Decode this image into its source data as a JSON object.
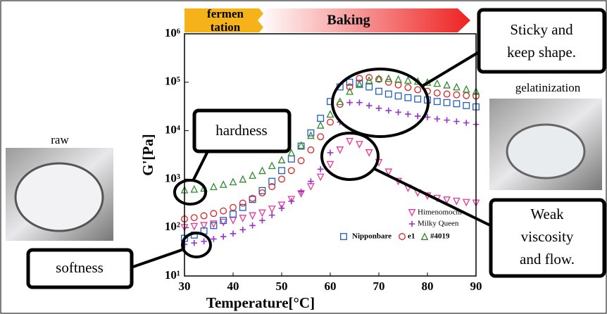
{
  "chart_data": {
    "type": "scatter",
    "yscale": "log",
    "xlabel": "Temperature[°C]",
    "ylabel": "G'[Pa]",
    "xlim": [
      30,
      90
    ],
    "xticks": [
      30,
      40,
      50,
      60,
      70,
      80,
      90
    ],
    "ylim": [
      10,
      1000000
    ],
    "yticks": [
      {
        "value": 10,
        "label": "10¹"
      },
      {
        "value": 100,
        "label": "10²"
      },
      {
        "value": 1000,
        "label": "10³"
      },
      {
        "value": 10000,
        "label": "10⁴"
      },
      {
        "value": 100000,
        "label": "10⁵"
      },
      {
        "value": 1000000,
        "label": "10⁶"
      }
    ],
    "x": [
      30,
      32,
      34,
      36,
      38,
      40,
      42,
      44,
      46,
      48,
      50,
      52,
      54,
      56,
      58,
      60,
      62,
      64,
      66,
      68,
      70,
      72,
      74,
      76,
      78,
      80,
      82,
      84,
      86,
      88,
      90
    ],
    "series": [
      {
        "name": "Himenomochi",
        "color": "#e8389a",
        "marker": "triangle-down",
        "values": [
          100,
          105,
          110,
          118,
          128,
          140,
          155,
          175,
          200,
          240,
          290,
          380,
          500,
          700,
          1100,
          2000,
          4000,
          6000,
          5200,
          3500,
          2200,
          1400,
          900,
          650,
          520,
          450,
          400,
          370,
          350,
          330,
          320
        ]
      },
      {
        "name": "Milky Queen",
        "color": "#9633cc",
        "marker": "plus",
        "values": [
          45,
          48,
          52,
          58,
          65,
          75,
          90,
          110,
          140,
          180,
          250,
          350,
          550,
          900,
          1600,
          3500,
          15000,
          38000,
          38000,
          33000,
          29000,
          26000,
          24000,
          22000,
          20000,
          19000,
          17500,
          16500,
          15500,
          14500,
          13500
        ]
      },
      {
        "name": "Nipponbare",
        "color": "#1f5fbf",
        "marker": "square",
        "values": [
          60,
          70,
          85,
          110,
          140,
          190,
          260,
          380,
          580,
          900,
          1500,
          2600,
          4800,
          9000,
          18000,
          40000,
          80000,
          100000,
          95000,
          80000,
          65000,
          57000,
          52000,
          48000,
          45000,
          43000,
          40000,
          38000,
          36000,
          33000,
          31000
        ]
      },
      {
        "name": "e1",
        "color": "#e02020",
        "marker": "circle",
        "values": [
          150,
          160,
          175,
          195,
          220,
          260,
          320,
          400,
          520,
          700,
          1000,
          1500,
          2400,
          4000,
          7500,
          15000,
          35000,
          80000,
          120000,
          125000,
          115000,
          100000,
          88000,
          78000,
          70000,
          65000,
          60000,
          57000,
          55000,
          53000,
          52000
        ]
      },
      {
        "name": "#4019",
        "color": "#2e8b2e",
        "marker": "triangle",
        "values": [
          600,
          620,
          650,
          700,
          780,
          880,
          1000,
          1200,
          1500,
          1900,
          2500,
          3500,
          5000,
          8000,
          13000,
          22000,
          40000,
          65000,
          90000,
          110000,
          120000,
          120000,
          115000,
          110000,
          105000,
          100000,
          95000,
          88000,
          80000,
          72000,
          65000
        ]
      }
    ],
    "annotations": {
      "phases": [
        [
          "fermen",
          "tation"
        ],
        [
          "Baking"
        ]
      ],
      "callouts": [
        [
          "Sticky and",
          "keep shape."
        ],
        [
          "hardness"
        ],
        [
          "softness"
        ],
        [
          "Weak",
          "viscosity",
          "and flow."
        ]
      ],
      "photos": [
        "raw",
        "gelatinization"
      ]
    }
  }
}
